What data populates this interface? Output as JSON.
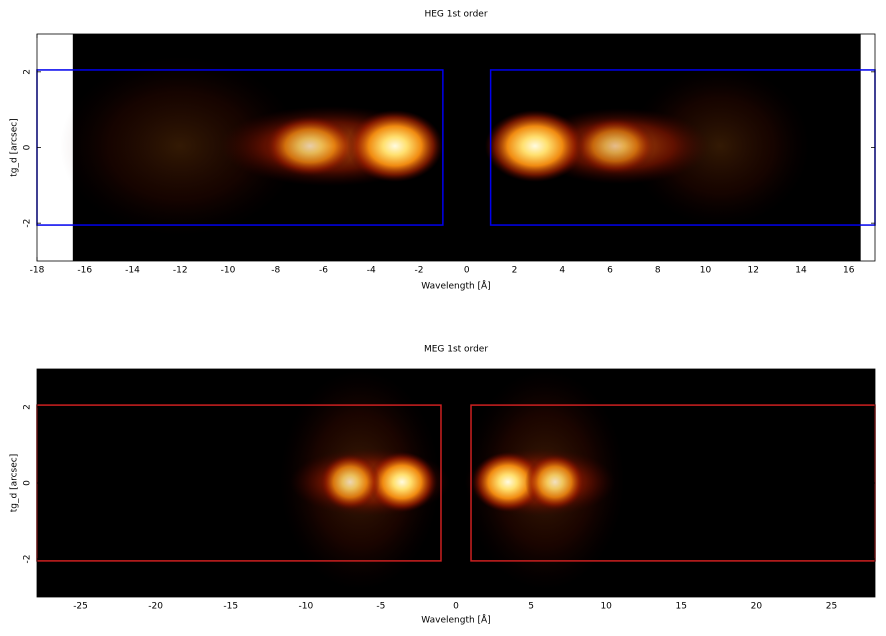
{
  "chart_data": [
    {
      "type": "heatmap",
      "title": "HEG 1st order",
      "x_label": "Wavelength [Å]",
      "y_label": "tg_d [arcsec]",
      "xlim": [
        -18,
        17.1
      ],
      "ylim": [
        -3,
        3
      ],
      "image_extent": [
        -16.5,
        16.5
      ],
      "xticks": [
        -18,
        -16,
        -14,
        -12,
        -10,
        -8,
        -6,
        -4,
        -2,
        0,
        2,
        4,
        6,
        8,
        10,
        12,
        14,
        16
      ],
      "yticks": [
        -2,
        0,
        2
      ],
      "region_color": "#0000ee",
      "regions": [
        {
          "xlim": [
            -18,
            -1
          ],
          "ylim": [
            -2.05,
            2.05
          ]
        },
        {
          "xlim": [
            1,
            17.1
          ],
          "ylim": [
            -2.05,
            2.05
          ]
        }
      ]
    },
    {
      "type": "heatmap",
      "title": "MEG 1st order",
      "x_label": "Wavelength [Å]",
      "y_label": "tg_d [arcsec]",
      "xlim": [
        -27.9,
        27.9
      ],
      "ylim": [
        -3,
        3
      ],
      "image_extent": [
        -27.9,
        27.9
      ],
      "xticks": [
        -25,
        -20,
        -15,
        -10,
        -5,
        0,
        5,
        10,
        15,
        20,
        25
      ],
      "yticks": [
        -2,
        0,
        2
      ],
      "region_color": "#cc2020",
      "regions": [
        {
          "xlim": [
            -27.9,
            -1
          ],
          "ylim": [
            -2.05,
            2.05
          ]
        },
        {
          "xlim": [
            1,
            27.9
          ],
          "ylim": [
            -2.05,
            2.05
          ]
        }
      ]
    }
  ]
}
